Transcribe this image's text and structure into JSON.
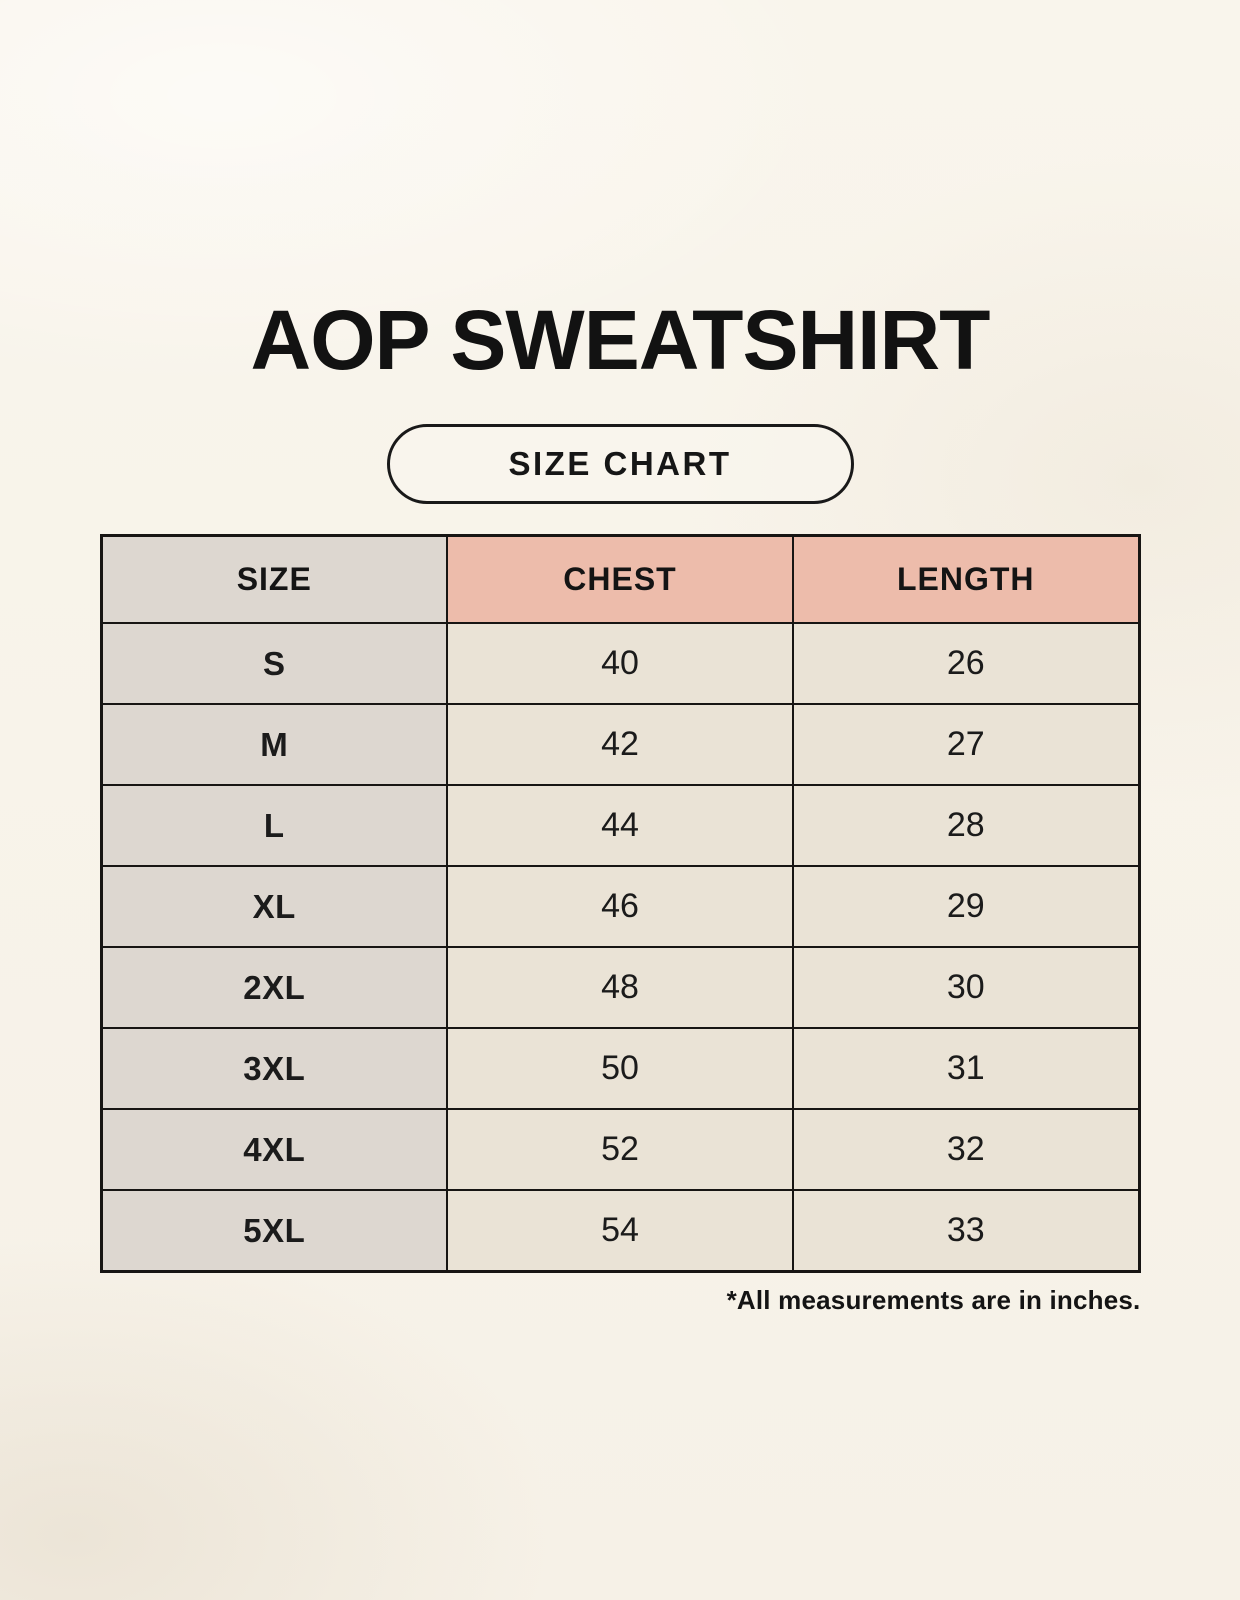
{
  "page": {
    "background_color": "#F8F4EB"
  },
  "header": {
    "title": "AOP SWEATSHIRT",
    "badge_label": "SIZE CHART"
  },
  "colors": {
    "size_column_bg": "#DDD7D0",
    "measurement_header_bg": "#EDBCAB",
    "value_cell_bg": "#EAE3D6",
    "table_border": "#171513",
    "text": "#141414"
  },
  "chart_data": {
    "type": "table",
    "title": "AOP SWEATSHIRT",
    "subtitle": "SIZE CHART",
    "columns": [
      "SIZE",
      "CHEST",
      "LENGTH"
    ],
    "rows": [
      [
        "S",
        40,
        26
      ],
      [
        "M",
        42,
        27
      ],
      [
        "L",
        44,
        28
      ],
      [
        "XL",
        46,
        29
      ],
      [
        "2XL",
        48,
        30
      ],
      [
        "3XL",
        50,
        31
      ],
      [
        "4XL",
        52,
        32
      ],
      [
        "5XL",
        54,
        33
      ]
    ],
    "note": "*All measurements are in inches.",
    "units": "inches"
  },
  "footer": {
    "note": "*All measurements are in inches."
  }
}
